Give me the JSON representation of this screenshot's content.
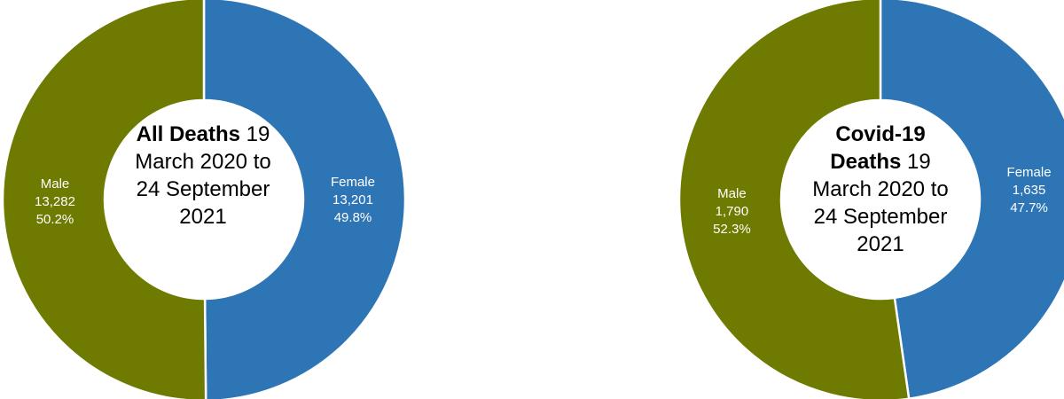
{
  "colors": {
    "female": "#2E75B6",
    "male": "#6E7A00",
    "hole": "#FFFFFF"
  },
  "chart_data": [
    {
      "type": "pie",
      "title_bold": "All Deaths",
      "title_rest": "19 March 2020 to 24 September 2021",
      "slices": [
        {
          "name": "Female",
          "count": "13,201",
          "value": 13201,
          "percent": "49.8%"
        },
        {
          "name": "Male",
          "count": "13,282",
          "value": 13282,
          "percent": "50.2%"
        }
      ]
    },
    {
      "type": "pie",
      "title_bold": "Covid-19 Deaths",
      "title_rest": "19 March 2020 to 24 September 2021",
      "slices": [
        {
          "name": "Female",
          "count": "1,635",
          "value": 1635,
          "percent": "47.7%"
        },
        {
          "name": "Male",
          "count": "1,790",
          "value": 1790,
          "percent": "52.3%"
        }
      ]
    }
  ]
}
